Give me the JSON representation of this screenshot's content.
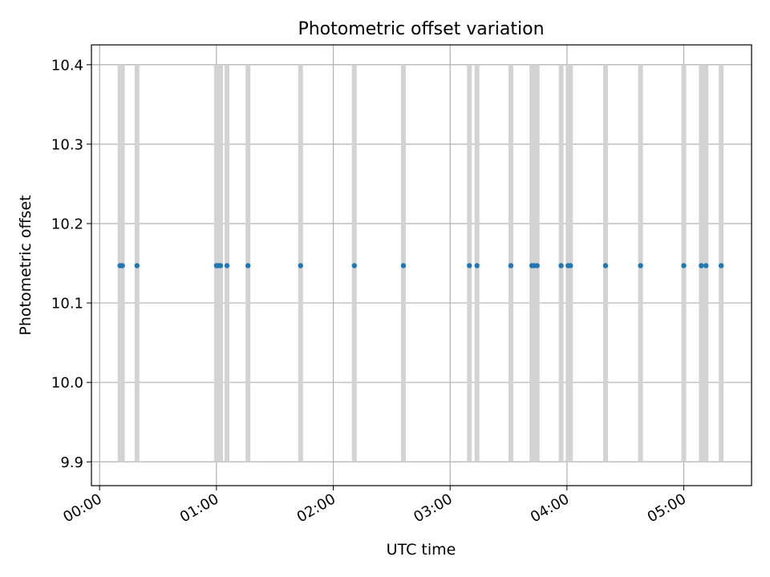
{
  "chart_data": {
    "type": "scatter",
    "title": "Photometric offset variation",
    "xlabel": "UTC time",
    "ylabel": "Photometric offset",
    "xlim": [
      -0.07,
      5.58
    ],
    "ylim": [
      9.87,
      10.425
    ],
    "grid": true,
    "x_ticks": [
      {
        "value": 0,
        "label": "00:00"
      },
      {
        "value": 1,
        "label": "01:00"
      },
      {
        "value": 2,
        "label": "02:00"
      },
      {
        "value": 3,
        "label": "03:00"
      },
      {
        "value": 4,
        "label": "04:00"
      },
      {
        "value": 5,
        "label": "05:00"
      }
    ],
    "y_ticks": [
      {
        "value": 9.9,
        "label": "9.9"
      },
      {
        "value": 10.0,
        "label": "10.0"
      },
      {
        "value": 10.1,
        "label": "10.1"
      },
      {
        "value": 10.2,
        "label": "10.2"
      },
      {
        "value": 10.3,
        "label": "10.3"
      },
      {
        "value": 10.4,
        "label": "10.4"
      }
    ],
    "vspan_range": [
      9.9,
      10.4
    ],
    "vspan_color": "#d3d3d3",
    "point_color": "#1f77b4",
    "grid_color": "#b0b0b0",
    "x_hours": [
      0.175,
      0.195,
      0.32,
      1.0,
      1.015,
      1.035,
      1.09,
      1.27,
      1.72,
      2.18,
      2.6,
      3.165,
      3.23,
      3.52,
      3.7,
      3.72,
      3.745,
      3.95,
      4.01,
      4.03,
      4.33,
      4.63,
      5.0,
      5.15,
      5.19,
      5.32
    ],
    "y_value": 10.147
  }
}
